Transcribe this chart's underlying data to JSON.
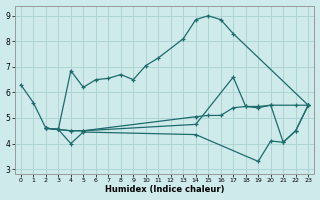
{
  "xlabel": "Humidex (Indice chaleur)",
  "bg_color": "#ceeaea",
  "line_color": "#1e6b6b",
  "grid_color": "#aed4d4",
  "xlim": [
    -0.5,
    23.5
  ],
  "ylim": [
    2.8,
    9.4
  ],
  "xticks": [
    0,
    1,
    2,
    3,
    4,
    5,
    6,
    7,
    8,
    9,
    10,
    11,
    12,
    13,
    14,
    15,
    16,
    17,
    18,
    19,
    20,
    21,
    22,
    23
  ],
  "yticks": [
    3,
    4,
    5,
    6,
    7,
    8,
    9
  ],
  "curve1_x": [
    0,
    1,
    2,
    3,
    4,
    5,
    6,
    7,
    8,
    9,
    10,
    11,
    13,
    14,
    15,
    16,
    17,
    23
  ],
  "curve1_y": [
    6.3,
    5.6,
    4.6,
    4.55,
    6.85,
    6.2,
    6.5,
    6.55,
    6.7,
    6.5,
    7.05,
    7.35,
    8.1,
    8.85,
    9.0,
    8.85,
    8.3,
    5.5
  ],
  "curve2_x": [
    2,
    3,
    4,
    5,
    14,
    15,
    16,
    17,
    18,
    19,
    20,
    22,
    23
  ],
  "curve2_y": [
    4.6,
    4.55,
    4.5,
    4.5,
    5.05,
    5.1,
    5.1,
    5.4,
    5.45,
    5.45,
    5.5,
    5.5,
    5.5
  ],
  "curve3_x": [
    2,
    3,
    4,
    5,
    14,
    19,
    20,
    21,
    22,
    23
  ],
  "curve3_y": [
    4.6,
    4.55,
    4.0,
    4.45,
    4.35,
    3.3,
    4.1,
    4.05,
    4.5,
    5.5
  ],
  "curve4_x": [
    2,
    3,
    4,
    5,
    14,
    17,
    18,
    19,
    20,
    21,
    22,
    23
  ],
  "curve4_y": [
    4.6,
    4.55,
    4.5,
    4.5,
    4.75,
    6.6,
    5.45,
    5.4,
    5.5,
    4.05,
    4.5,
    5.5
  ]
}
